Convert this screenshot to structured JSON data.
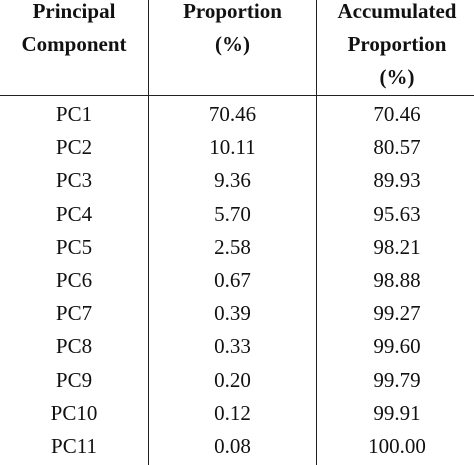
{
  "table": {
    "headers": {
      "component": [
        "Principal",
        "Component"
      ],
      "proportion": [
        "Proportion",
        "(%)"
      ],
      "accumulated": [
        "Accumulated",
        "Proportion",
        "(%)"
      ]
    },
    "rows": [
      {
        "component": "PC1",
        "proportion": "70.46",
        "accumulated": "70.46"
      },
      {
        "component": "PC2",
        "proportion": "10.11",
        "accumulated": "80.57"
      },
      {
        "component": "PC3",
        "proportion": "9.36",
        "accumulated": "89.93"
      },
      {
        "component": "PC4",
        "proportion": "5.70",
        "accumulated": "95.63"
      },
      {
        "component": "PC5",
        "proportion": "2.58",
        "accumulated": "98.21"
      },
      {
        "component": "PC6",
        "proportion": "0.67",
        "accumulated": "98.88"
      },
      {
        "component": "PC7",
        "proportion": "0.39",
        "accumulated": "99.27"
      },
      {
        "component": "PC8",
        "proportion": "0.33",
        "accumulated": "99.60"
      },
      {
        "component": "PC9",
        "proportion": "0.20",
        "accumulated": "99.79"
      },
      {
        "component": "PC10",
        "proportion": "0.12",
        "accumulated": "99.91"
      },
      {
        "component": "PC11",
        "proportion": "0.08",
        "accumulated": "100.00"
      }
    ]
  }
}
